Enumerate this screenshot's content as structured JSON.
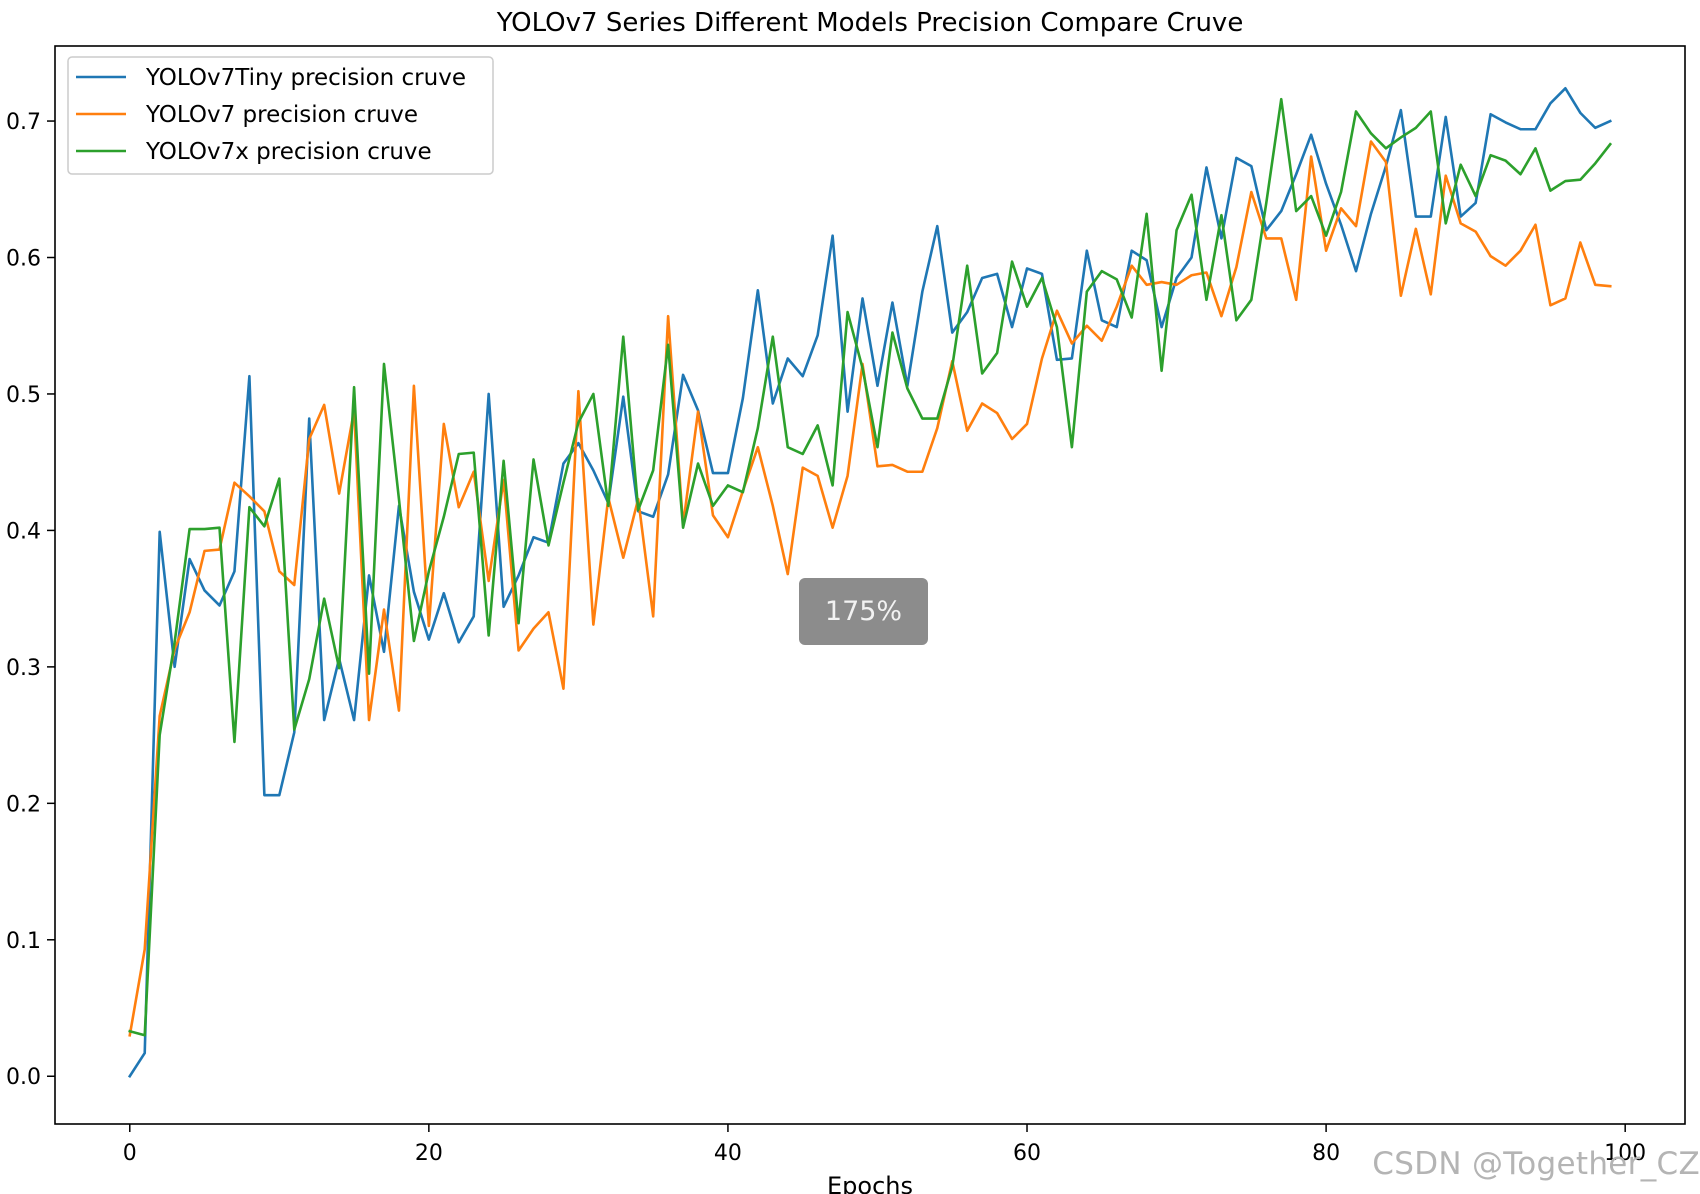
{
  "chart_data": {
    "type": "line",
    "title": "YOLOv7 Series Different Models Precision Compare Cruve",
    "xlabel": "Epochs",
    "ylabel": "",
    "xlim": [
      -5,
      104
    ],
    "ylim": [
      -0.035,
      0.755
    ],
    "xticks": [
      0,
      20,
      40,
      60,
      80,
      100
    ],
    "yticks": [
      0.0,
      0.1,
      0.2,
      0.3,
      0.4,
      0.5,
      0.6,
      0.7
    ],
    "xtick_labels": [
      "0",
      "20",
      "40",
      "60",
      "80",
      "100"
    ],
    "ytick_labels": [
      "0.0",
      "0.1",
      "0.2",
      "0.3",
      "0.4",
      "0.5",
      "0.6",
      "0.7"
    ],
    "grid": false,
    "legend_position": "top-left",
    "series": [
      {
        "name": "YOLOv7Tiny precision cruve",
        "color": "#1f77b4",
        "values": [
          0.0,
          0.017,
          0.399,
          0.3,
          0.379,
          0.356,
          0.345,
          0.37,
          0.513,
          0.206,
          0.206,
          0.252,
          0.482,
          0.261,
          0.306,
          0.261,
          0.367,
          0.311,
          0.418,
          0.355,
          0.32,
          0.354,
          0.318,
          0.337,
          0.5,
          0.344,
          0.367,
          0.395,
          0.391,
          0.449,
          0.464,
          0.444,
          0.42,
          0.498,
          0.414,
          0.41,
          0.441,
          0.514,
          0.488,
          0.442,
          0.442,
          0.497,
          0.576,
          0.493,
          0.526,
          0.513,
          0.543,
          0.616,
          0.487,
          0.57,
          0.506,
          0.567,
          0.506,
          0.575,
          0.623,
          0.545,
          0.56,
          0.585,
          0.588,
          0.549,
          0.592,
          0.588,
          0.525,
          0.526,
          0.605,
          0.554,
          0.549,
          0.605,
          0.598,
          0.549,
          0.585,
          0.6,
          0.666,
          0.614,
          0.673,
          0.667,
          0.62,
          0.634,
          0.661,
          0.69,
          0.654,
          0.624,
          0.59,
          0.632,
          0.667,
          0.708,
          0.63,
          0.63,
          0.703,
          0.63,
          0.64,
          0.705,
          0.699,
          0.694,
          0.694,
          0.713,
          0.724,
          0.706,
          0.695,
          0.7
        ]
      },
      {
        "name": "YOLOv7 precision cruve",
        "color": "#ff7f0e",
        "values": [
          0.03,
          0.093,
          0.264,
          0.313,
          0.34,
          0.385,
          0.386,
          0.435,
          0.425,
          0.414,
          0.37,
          0.36,
          0.467,
          0.492,
          0.427,
          0.488,
          0.261,
          0.342,
          0.268,
          0.506,
          0.33,
          0.478,
          0.417,
          0.443,
          0.363,
          0.437,
          0.312,
          0.328,
          0.34,
          0.284,
          0.502,
          0.331,
          0.424,
          0.38,
          0.423,
          0.337,
          0.557,
          0.404,
          0.487,
          0.411,
          0.395,
          0.429,
          0.461,
          0.418,
          0.368,
          0.446,
          0.44,
          0.402,
          0.44,
          0.522,
          0.447,
          0.448,
          0.443,
          0.443,
          0.475,
          0.524,
          0.473,
          0.493,
          0.486,
          0.467,
          0.478,
          0.526,
          0.561,
          0.537,
          0.55,
          0.539,
          0.564,
          0.594,
          0.58,
          0.582,
          0.58,
          0.587,
          0.589,
          0.557,
          0.593,
          0.648,
          0.614,
          0.614,
          0.569,
          0.674,
          0.605,
          0.636,
          0.623,
          0.685,
          0.67,
          0.572,
          0.621,
          0.573,
          0.66,
          0.625,
          0.619,
          0.601,
          0.594,
          0.605,
          0.624,
          0.565,
          0.57,
          0.611,
          0.58,
          0.579
        ]
      },
      {
        "name": "YOLOv7x precision cruve",
        "color": "#2ca02c",
        "values": [
          0.033,
          0.03,
          0.25,
          0.318,
          0.401,
          0.401,
          0.402,
          0.245,
          0.417,
          0.403,
          0.438,
          0.254,
          0.291,
          0.35,
          0.299,
          0.505,
          0.295,
          0.522,
          0.423,
          0.319,
          0.37,
          0.41,
          0.456,
          0.457,
          0.323,
          0.451,
          0.332,
          0.452,
          0.389,
          0.435,
          0.479,
          0.5,
          0.418,
          0.542,
          0.415,
          0.444,
          0.536,
          0.402,
          0.449,
          0.418,
          0.433,
          0.428,
          0.475,
          0.542,
          0.461,
          0.456,
          0.477,
          0.433,
          0.56,
          0.519,
          0.461,
          0.545,
          0.504,
          0.482,
          0.482,
          0.52,
          0.594,
          0.515,
          0.53,
          0.597,
          0.564,
          0.585,
          0.549,
          0.461,
          0.575,
          0.59,
          0.584,
          0.556,
          0.632,
          0.517,
          0.62,
          0.646,
          0.569,
          0.631,
          0.554,
          0.569,
          0.64,
          0.716,
          0.634,
          0.645,
          0.616,
          0.648,
          0.707,
          0.691,
          0.68,
          0.688,
          0.695,
          0.707,
          0.625,
          0.668,
          0.645,
          0.675,
          0.671,
          0.661,
          0.68,
          0.649,
          0.656,
          0.657,
          0.669,
          0.683
        ]
      }
    ]
  },
  "overlay": {
    "zoom_label": "175%"
  },
  "watermark": {
    "text": "CSDN @Together_CZ"
  }
}
